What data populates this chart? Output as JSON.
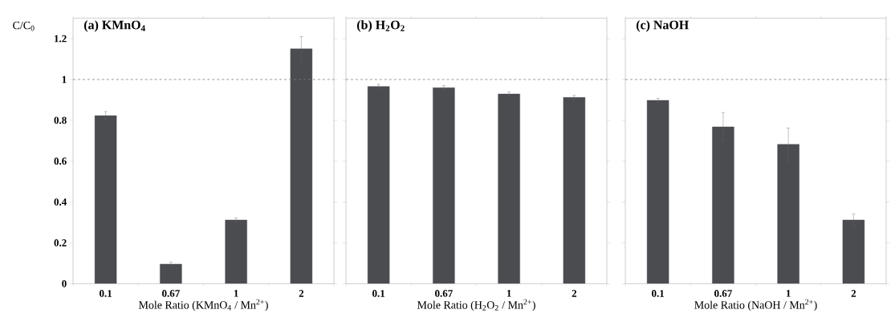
{
  "chart_data": [
    {
      "type": "bar",
      "title": "(a) KMnO$_{4}$",
      "ylabel": "C/C$_{0}$",
      "xlabel": "Mole Ratio (KMnO$_{4}$ / Mn$^{2+}$)",
      "categories": [
        "0.1",
        "0.67",
        "1",
        "2"
      ],
      "values": [
        0.823,
        0.096,
        0.312,
        1.15
      ],
      "errors": [
        0.02,
        0.01,
        0.01,
        0.06
      ],
      "color": "#4a4c50",
      "ylim": [
        0,
        1.3
      ],
      "yticks": [
        0,
        0.2,
        0.4,
        0.6,
        0.8,
        1,
        1.2
      ],
      "ref_lines": [
        {
          "axis": "y",
          "value": 1,
          "color": "#808080",
          "line_style": "dashed"
        }
      ]
    },
    {
      "type": "bar",
      "title": "(b) H$_{2}$O$_{2}$",
      "xlabel": "Mole Ratio (H$_{2}$O$_{2}$ / Mn$^{2+}$)",
      "categories": [
        "0.1",
        "0.67",
        "1",
        "2"
      ],
      "values": [
        0.966,
        0.96,
        0.929,
        0.912
      ],
      "errors": [
        0.01,
        0.01,
        0.01,
        0.01
      ],
      "color": "#4a4c50",
      "ylim": [
        0,
        1.3
      ],
      "yticks": [
        0,
        0.2,
        0.4,
        0.6,
        0.8,
        1,
        1.2
      ],
      "tick_labels": "x",
      "ref_lines": [
        {
          "axis": "y",
          "value": 1,
          "color": "#808080",
          "line_style": "dashed"
        }
      ]
    },
    {
      "type": "bar",
      "title": "(c) NaOH",
      "xlabel": "Mole Ratio (NaOH / Mn$^{2+}$)",
      "categories": [
        "0.1",
        "0.67",
        "1",
        "2"
      ],
      "values": [
        0.898,
        0.768,
        0.682,
        0.312
      ],
      "errors": [
        0.01,
        0.07,
        0.08,
        0.03
      ],
      "color": "#4a4c50",
      "ylim": [
        0,
        1.3
      ],
      "yticks": [
        0,
        0.2,
        0.4,
        0.6,
        0.8,
        1,
        1.2
      ],
      "tick_labels": "x",
      "ref_lines": [
        {
          "axis": "y",
          "value": 1,
          "color": "#808080",
          "line_style": "dashed"
        }
      ]
    }
  ]
}
